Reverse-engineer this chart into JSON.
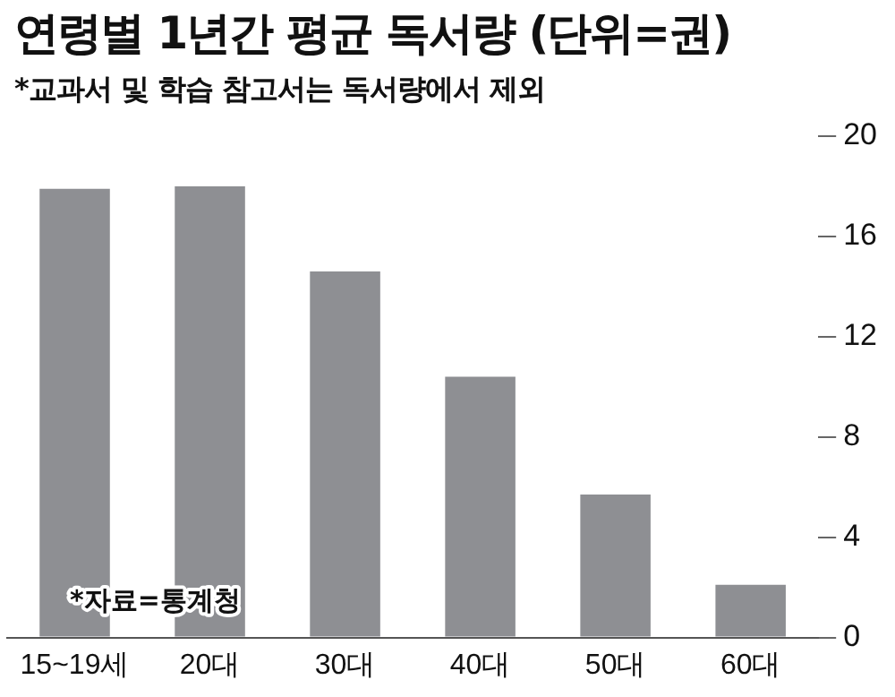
{
  "chart_data": {
    "type": "bar",
    "title": "연령별 1년간 평균 독서량 (단위=권)",
    "subtitle": "*교과서 및 학습 참고서는 독서량에서 제외",
    "annotations": [
      "*자료=통계청"
    ],
    "categories": [
      "15~19세",
      "20대",
      "30대",
      "40대",
      "50대",
      "60대"
    ],
    "values": [
      17.9,
      18.0,
      14.6,
      10.4,
      5.7,
      2.1
    ],
    "color": "#8e8f93",
    "ylim": [
      0,
      20
    ],
    "yticks": [
      0,
      4,
      8,
      12,
      16,
      20
    ],
    "grid": false,
    "legend": false
  }
}
